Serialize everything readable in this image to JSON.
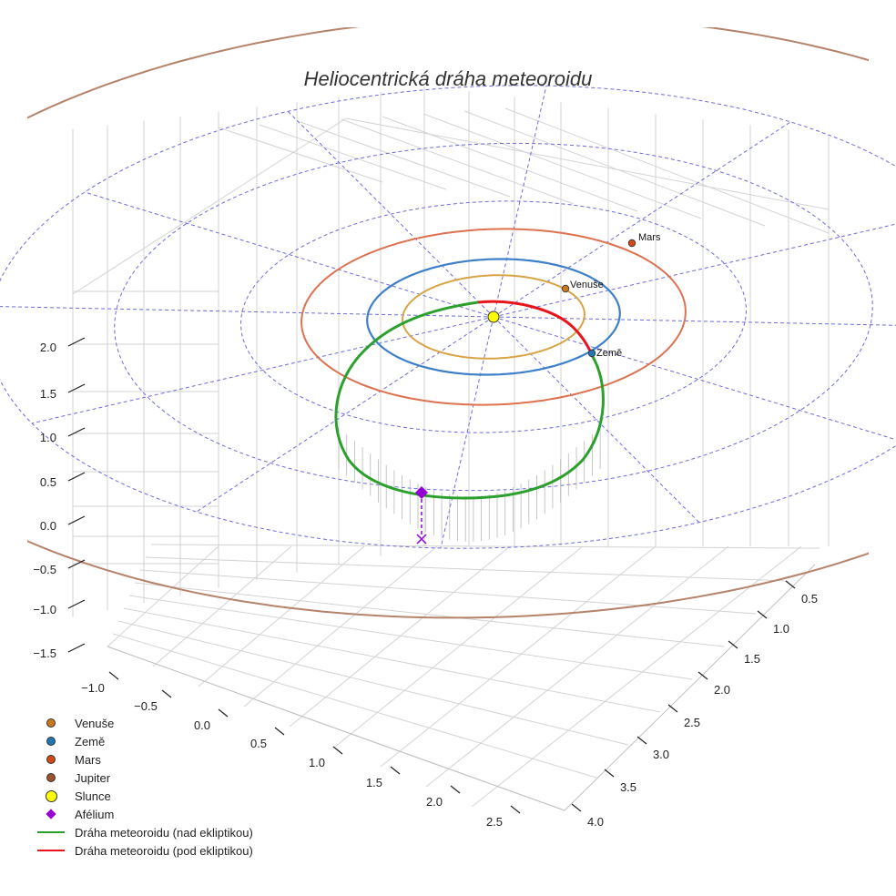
{
  "chart_data": {
    "type": "scatter",
    "title": "Heliocentrická dráha meteoroidu",
    "axes": {
      "x": {
        "ticks": [
          "−1.0",
          "−0.5",
          "0.0",
          "0.5",
          "1.0",
          "1.5",
          "2.0",
          "2.5"
        ]
      },
      "y": {
        "ticks": [
          "0.5",
          "1.0",
          "1.5",
          "2.0",
          "2.5",
          "3.0",
          "3.5",
          "4.0"
        ]
      },
      "z": {
        "ticks": [
          "2.0",
          "1.5",
          "1.0",
          "0.5",
          "0.0",
          "−0.5",
          "−1.0",
          "−1.5"
        ]
      }
    },
    "grid": true,
    "legend_position": "bottom-left",
    "planets": [
      {
        "name": "Venuše",
        "color": "#c8781e",
        "orbit_color": "#d9a446",
        "orbit_radius_au": 0.72
      },
      {
        "name": "Země",
        "color": "#1f77b4",
        "orbit_color": "#3d7fc8",
        "orbit_radius_au": 1.0
      },
      {
        "name": "Mars",
        "color": "#d04a18",
        "orbit_color": "#dd7150",
        "orbit_radius_au": 1.52
      },
      {
        "name": "Jupiter",
        "color": "#a0522d",
        "orbit_color": "#b5826a",
        "orbit_radius_au": 5.2
      }
    ],
    "sun": {
      "name": "Slunce",
      "color": "#ffff00"
    },
    "aphelion": {
      "name": "Afélium",
      "color": "#9400d3"
    },
    "meteoroid_orbit": [
      {
        "name": "Dráha meteoroidu (nad ekliptikou)",
        "color": "#2ca02c"
      },
      {
        "name": "Dráha meteoroidu (pod ekliptikou)",
        "color": "#e8141c"
      }
    ],
    "reference_circles_au": [
      1,
      2,
      3,
      4
    ]
  },
  "labels": {
    "venus": "Venuše",
    "earth": "Země",
    "mars": "Mars"
  },
  "legend": [
    {
      "label": "Venuše",
      "symbol": "dot",
      "color": "#c8781e"
    },
    {
      "label": "Země",
      "symbol": "dot",
      "color": "#1f77b4"
    },
    {
      "label": "Mars",
      "symbol": "dot",
      "color": "#d04a18"
    },
    {
      "label": "Jupiter",
      "symbol": "dot",
      "color": "#a0522d"
    },
    {
      "label": "Slunce",
      "symbol": "sun",
      "color": "#ffff00"
    },
    {
      "label": "Afélium",
      "symbol": "diamond",
      "color": "#9400d3"
    },
    {
      "label": "Dráha meteoroidu (nad ekliptikou)",
      "symbol": "line",
      "color": "#2ca02c"
    },
    {
      "label": "Dráha meteoroidu (pod ekliptikou)",
      "symbol": "line",
      "color": "#e8141c"
    }
  ]
}
